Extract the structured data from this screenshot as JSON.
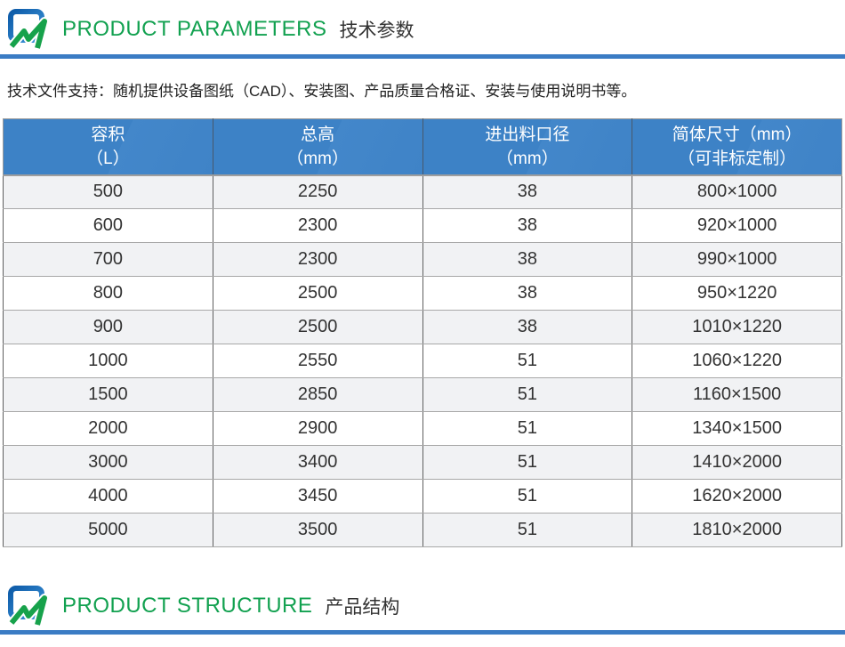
{
  "sections": {
    "parameters": {
      "title_en": "PRODUCT PARAMETERS",
      "title_zh": "技术参数"
    },
    "structure": {
      "title_en": "PRODUCT STRUCTURE",
      "title_zh": "产品结构"
    }
  },
  "intro": "技术文件支持：随机提供设备图纸（CAD）、安装图、产品质量合格证、安装与使用说明书等。",
  "table": {
    "headers": [
      {
        "line1": "容积",
        "line2": "（L）"
      },
      {
        "line1": "总高",
        "line2": "（mm）"
      },
      {
        "line1": "进出料口径",
        "line2": "（mm）"
      },
      {
        "line1": "简体尺寸（mm）",
        "line2": "（可非标定制）"
      }
    ],
    "rows": [
      [
        "500",
        "2250",
        "38",
        "800×1000"
      ],
      [
        "600",
        "2300",
        "38",
        "920×1000"
      ],
      [
        "700",
        "2300",
        "38",
        "990×1000"
      ],
      [
        "800",
        "2500",
        "38",
        "950×1220"
      ],
      [
        "900",
        "2500",
        "38",
        "1010×1220"
      ],
      [
        "1000",
        "2550",
        "51",
        "1060×1220"
      ],
      [
        "1500",
        "2850",
        "51",
        "1160×1500"
      ],
      [
        "2000",
        "2900",
        "51",
        "1340×1500"
      ],
      [
        "3000",
        "3400",
        "51",
        "1410×2000"
      ],
      [
        "4000",
        "3450",
        "51",
        "1620×2000"
      ],
      [
        "5000",
        "3500",
        "51",
        "1810×2000"
      ]
    ]
  },
  "icons": {
    "logo": "company-logo-icon"
  },
  "colors": {
    "accent_blue": "#3b7cc4",
    "table_header_blue": "#3d82c6",
    "title_green": "#12a150",
    "row_alt": "#f1f2f4",
    "text_dark": "#333333"
  }
}
